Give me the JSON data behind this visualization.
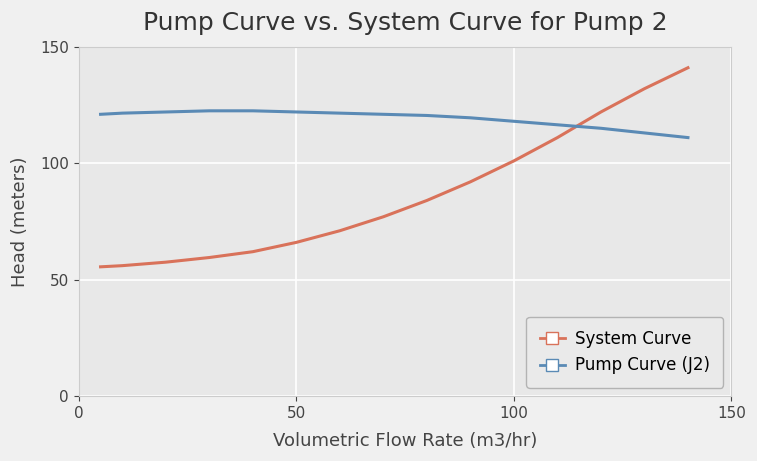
{
  "title": "Pump Curve vs. System Curve for Pump 2",
  "xlabel": "Volumetric Flow Rate (m3/hr)",
  "ylabel": "Head (meters)",
  "xlim": [
    0,
    150
  ],
  "ylim": [
    0,
    150
  ],
  "xticks": [
    0,
    50,
    100,
    150
  ],
  "yticks": [
    0,
    50,
    100,
    150
  ],
  "background_color": "#e8e8e8",
  "fig_background": "#f0f0f0",
  "system_curve_color": "#d9725a",
  "pump_curve_color": "#5a8ab5",
  "system_curve_x": [
    5,
    10,
    20,
    30,
    40,
    50,
    60,
    70,
    80,
    90,
    100,
    110,
    120,
    130,
    140
  ],
  "system_curve_y": [
    55.5,
    56.0,
    57.5,
    59.5,
    62.0,
    66.0,
    71.0,
    77.0,
    84.0,
    92.0,
    101.0,
    111.0,
    122.0,
    132.0,
    141.0
  ],
  "pump_curve_x": [
    5,
    10,
    20,
    30,
    40,
    50,
    60,
    70,
    80,
    90,
    100,
    110,
    120,
    130,
    140
  ],
  "pump_curve_y": [
    121.0,
    121.5,
    122.0,
    122.5,
    122.5,
    122.0,
    121.5,
    121.0,
    120.5,
    119.5,
    118.0,
    116.5,
    115.0,
    113.0,
    111.0
  ],
  "legend_system": "System Curve",
  "legend_pump": "Pump Curve (J2)",
  "title_fontsize": 18,
  "label_fontsize": 13,
  "tick_fontsize": 11,
  "legend_fontsize": 12,
  "line_width": 2.2
}
